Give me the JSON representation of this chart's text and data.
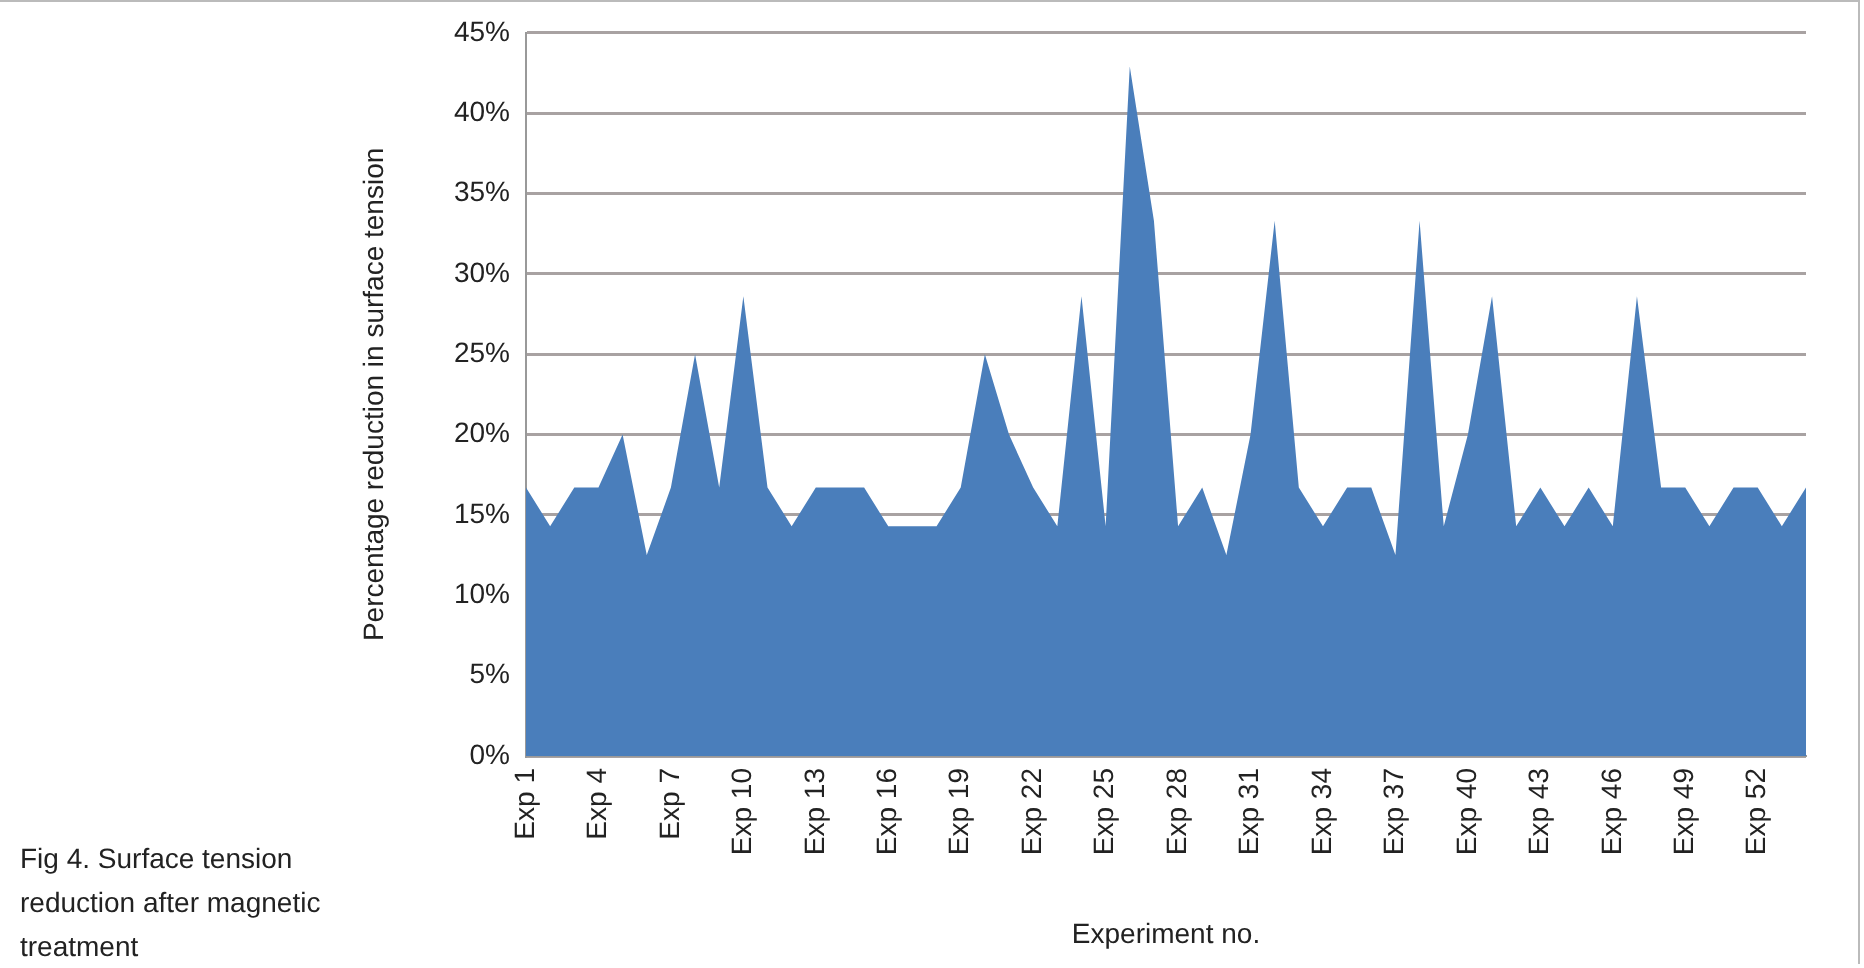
{
  "chart_data": {
    "type": "area",
    "xlabel": "Experiment no.",
    "ylabel": "Percentage reduction in surface tension",
    "annotations": [
      "Fig 4. Surface tension reduction after magnetic treatment"
    ],
    "categories": [
      "Exp 1",
      null,
      null,
      "Exp 4",
      null,
      null,
      "Exp 7",
      null,
      null,
      "Exp 10",
      null,
      null,
      "Exp 13",
      null,
      null,
      "Exp 16",
      null,
      null,
      "Exp 19",
      null,
      null,
      "Exp 22",
      null,
      null,
      "Exp 25",
      null,
      null,
      "Exp 28",
      null,
      null,
      "Exp 31",
      null,
      null,
      "Exp 34",
      null,
      null,
      "Exp 37",
      null,
      null,
      "Exp 40",
      null,
      null,
      "Exp 43",
      null,
      null,
      "Exp 46",
      null,
      null,
      "Exp 49",
      null,
      null,
      "Exp 52",
      null,
      null
    ],
    "series": [
      {
        "color": "#4a7ebb",
        "values": [
          16.7,
          14.3,
          16.7,
          16.7,
          20,
          12.5,
          16.7,
          25,
          16.7,
          28.6,
          16.7,
          14.3,
          16.7,
          16.7,
          16.7,
          14.3,
          14.3,
          14.3,
          16.7,
          25,
          20,
          16.7,
          14.3,
          28.6,
          14.3,
          42.9,
          33.3,
          14.3,
          16.7,
          12.5,
          20,
          33.3,
          16.7,
          14.3,
          16.7,
          16.7,
          12.5,
          33.3,
          14.3,
          20,
          28.6,
          14.3,
          16.7,
          14.3,
          16.7,
          14.3,
          28.6,
          16.7,
          16.7,
          14.3,
          16.7,
          16.7,
          14.3,
          16.7
        ]
      }
    ],
    "ylim": [
      0,
      45
    ],
    "yticks": [
      {
        "value": 0,
        "label": "0%"
      },
      {
        "value": 5,
        "label": "5%"
      },
      {
        "value": 10,
        "label": "10%"
      },
      {
        "value": 15,
        "label": "15%"
      },
      {
        "value": 20,
        "label": "20%"
      },
      {
        "value": 25,
        "label": "25%"
      },
      {
        "value": 30,
        "label": "30%"
      },
      {
        "value": 35,
        "label": "35%"
      },
      {
        "value": 40,
        "label": "40%"
      },
      {
        "value": 45,
        "label": "45%"
      }
    ],
    "grid": "y"
  }
}
